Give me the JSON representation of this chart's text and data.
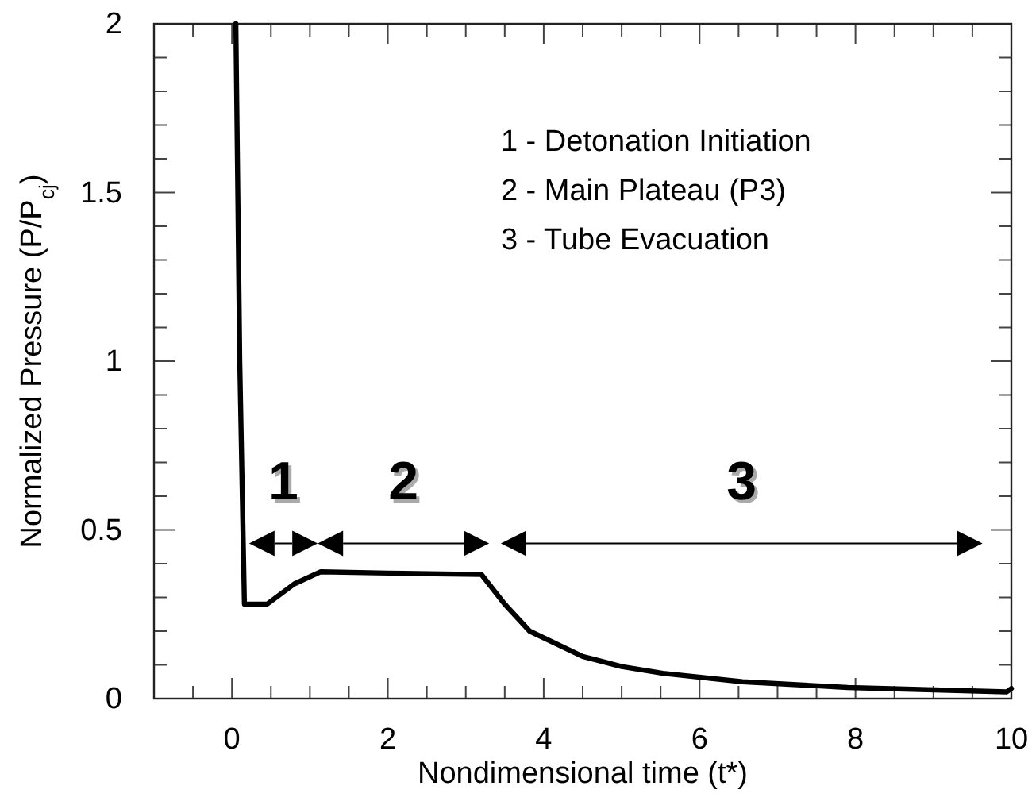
{
  "chart_data": {
    "type": "line",
    "xlabel": "Nondimensional time (t*)",
    "ylabel": "Normalized Pressure (P/P$_{cj}$)",
    "x": [
      0.05,
      0.1,
      0.16,
      0.3,
      0.45,
      0.8,
      1.14,
      2.0,
      3.2,
      3.5,
      3.82,
      4.5,
      5.0,
      5.53,
      6.55,
      7.9,
      9.94,
      10
    ],
    "series": [
      {
        "color": "#000000",
        "values": [
          2,
          1.0,
          0.28,
          0.28,
          0.28,
          0.34,
          0.376,
          0.372,
          0.368,
          0.28,
          0.2,
          0.125,
          0.095,
          0.075,
          0.05,
          0.033,
          0.02,
          0.03
        ]
      }
    ],
    "xlim": [
      -1,
      10
    ],
    "xticks": [
      {
        "value": -0.5,
        "label": null
      },
      0,
      {
        "value": 0.5,
        "label": null
      },
      {
        "value": 1,
        "label": null
      },
      {
        "value": 1.5,
        "label": null
      },
      2,
      {
        "value": 2.5,
        "label": null
      },
      {
        "value": 3,
        "label": null
      },
      {
        "value": 3.5,
        "label": null
      },
      4,
      {
        "value": 4.5,
        "label": null
      },
      {
        "value": 5,
        "label": null
      },
      {
        "value": 5.5,
        "label": null
      },
      6,
      {
        "value": 6.5,
        "label": null
      },
      {
        "value": 7,
        "label": null
      },
      {
        "value": 7.5,
        "label": null
      },
      8,
      {
        "value": 8.5,
        "label": null
      },
      {
        "value": 9,
        "label": null
      },
      {
        "value": 9.5,
        "label": null
      },
      10
    ],
    "ylim": [
      0,
      2
    ],
    "yticks": [
      0,
      {
        "value": 0.1,
        "label": null
      },
      {
        "value": 0.2,
        "label": null
      },
      {
        "value": 0.3,
        "label": null
      },
      {
        "value": 0.4,
        "label": null
      },
      0.5,
      {
        "value": 0.6,
        "label": null
      },
      {
        "value": 0.7,
        "label": null
      },
      {
        "value": 0.8,
        "label": null
      },
      {
        "value": 0.9,
        "label": null
      },
      1,
      {
        "value": 1.1,
        "label": null
      },
      {
        "value": 1.2,
        "label": null
      },
      {
        "value": 1.3,
        "label": null
      },
      {
        "value": 1.4,
        "label": null
      },
      1.5,
      {
        "value": 1.6,
        "label": null
      },
      {
        "value": 1.7,
        "label": null
      },
      {
        "value": 1.8,
        "label": null
      },
      {
        "value": 1.9,
        "label": null
      },
      2
    ],
    "annotations": [
      "1 - Detonation Initiation",
      "2 - Main Plateau (P3)",
      "3 - Tube Evacuation",
      "1",
      "2",
      "3"
    ],
    "grid": false,
    "marker": "none",
    "line_style": "solid"
  }
}
